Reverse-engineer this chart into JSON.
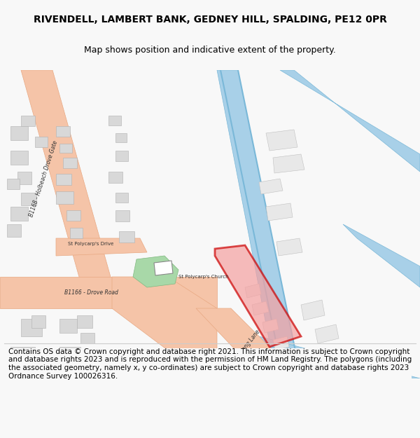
{
  "title": "RIVENDELL, LAMBERT BANK, GEDNEY HILL, SPALDING, PE12 0PR",
  "subtitle": "Map shows position and indicative extent of the property.",
  "footer": "Contains OS data © Crown copyright and database right 2021. This information is subject to Crown copyright and database rights 2023 and is reproduced with the permission of HM Land Registry. The polygons (including the associated geometry, namely x, y co-ordinates) are subject to Crown copyright and database rights 2023 Ordnance Survey 100026316.",
  "bg_color": "#f8f8f8",
  "map_bg": "#ffffff",
  "road_salmon": "#f5c4a8",
  "road_salmon_border": "#e8a882",
  "canal_blue": "#a8d0e8",
  "canal_blue_dark": "#7ab8d8",
  "building_gray": "#d8d8d8",
  "building_outline": "#b0b0b0",
  "green_patch": "#a8d8a8",
  "property_red": "#cc0000",
  "property_fill": "#f5a0a0",
  "text_color": "#333333",
  "title_fontsize": 10,
  "subtitle_fontsize": 9,
  "footer_fontsize": 7.5
}
